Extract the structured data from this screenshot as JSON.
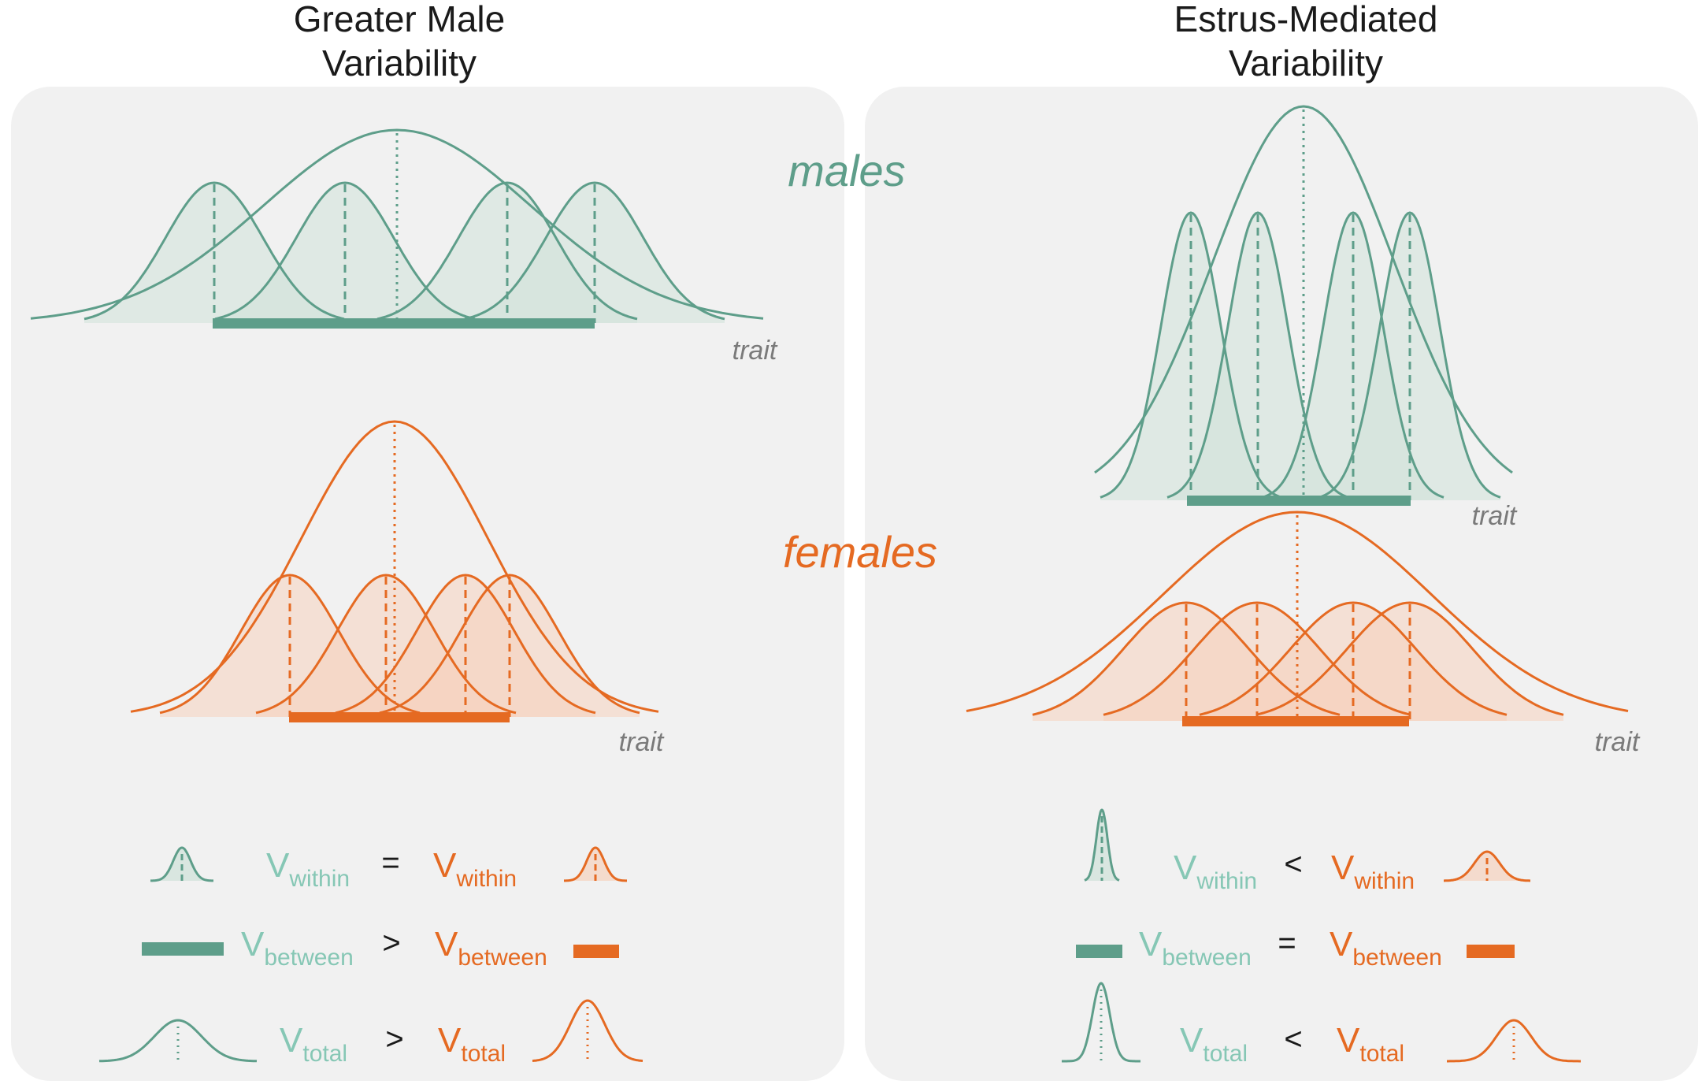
{
  "colors": {
    "male": "#5e9e8a",
    "male_fill": "#cfe1d9",
    "male_text": "#86c7b5",
    "female": "#e56a22",
    "female_fill": "#f5d2bd",
    "female_text": "#e56a22",
    "panel": "#f1f1f1",
    "trait_text": "#7a7a7a"
  },
  "panels": [
    {
      "title_line1": "Greater Male",
      "title_line2": "Variability",
      "trait_label": "trait",
      "comparisons": [
        {
          "symbol": "V",
          "sub": "within",
          "operator": "=",
          "icon": "narrow-curve-icon"
        },
        {
          "symbol": "V",
          "sub": "between",
          "operator": ">",
          "icon": "bar-icon"
        },
        {
          "symbol": "V",
          "sub": "total",
          "operator": ">",
          "icon": "total-curve-icon"
        }
      ]
    },
    {
      "title_line1": "Estrus-Mediated",
      "title_line2": "Variability",
      "trait_label": "trait",
      "comparisons": [
        {
          "symbol": "V",
          "sub": "within",
          "operator": "<",
          "icon": "narrow-curve-icon"
        },
        {
          "symbol": "V",
          "sub": "between",
          "operator": "=",
          "icon": "bar-icon"
        },
        {
          "symbol": "V",
          "sub": "total",
          "operator": "<",
          "icon": "total-curve-icon"
        }
      ]
    }
  ],
  "group_labels": {
    "males": "males",
    "females": "females"
  }
}
